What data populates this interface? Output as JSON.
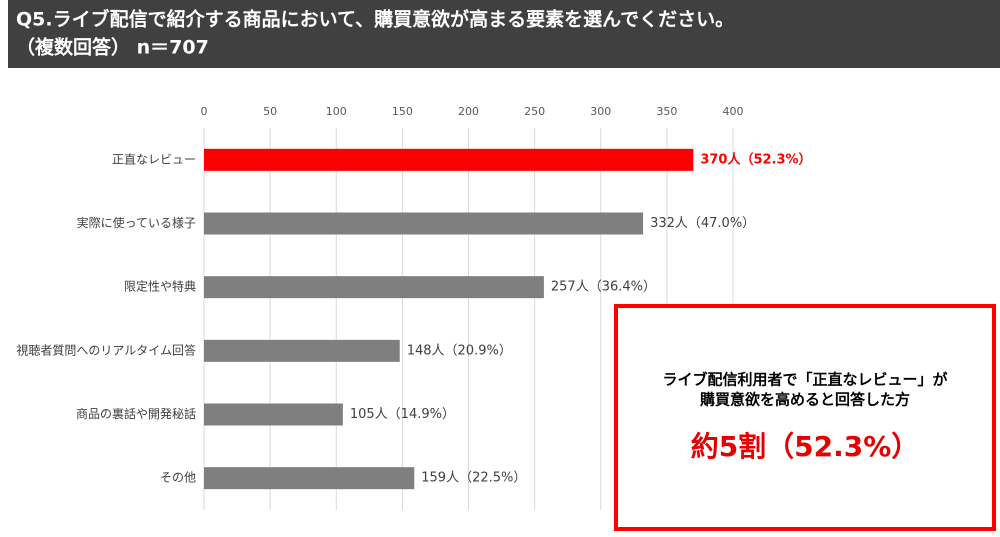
{
  "chart_data": {
    "type": "bar",
    "orientation": "horizontal",
    "title_lines": [
      "Q5.ライブ配信で紹介する商品において、購買意欲が高まる要素を選んでください。",
      "（複数回答） n＝707"
    ],
    "categories": [
      "正直なレビュー",
      "実際に使っている様子",
      "限定性や特典",
      "視聴者質問へのリアルタイム回答",
      "商品の裏話や開発秘話",
      "その他"
    ],
    "values": [
      370,
      332,
      257,
      148,
      105,
      159
    ],
    "value_labels": [
      "370人（52.3%）",
      "332人（47.0%）",
      "257人（36.4%）",
      "148人（20.9%）",
      "105人（14.9%）",
      "159人（22.5%）"
    ],
    "colors": [
      "#ff0000",
      "#7f7f7f",
      "#7f7f7f",
      "#7f7f7f",
      "#7f7f7f",
      "#7f7f7f"
    ],
    "value_label_colors": [
      "#ff0000",
      "#404040",
      "#404040",
      "#404040",
      "#404040",
      "#404040"
    ],
    "xlim": [
      0,
      400
    ],
    "xticks": [
      0,
      50,
      100,
      150,
      200,
      250,
      300,
      350,
      400
    ],
    "grid": true,
    "callout": {
      "lines": [
        "ライブ配信利用者で「正直なレビュー」が",
        "購買意欲を高めると回答した方"
      ],
      "highlight": "約5割（52.3%）"
    }
  }
}
